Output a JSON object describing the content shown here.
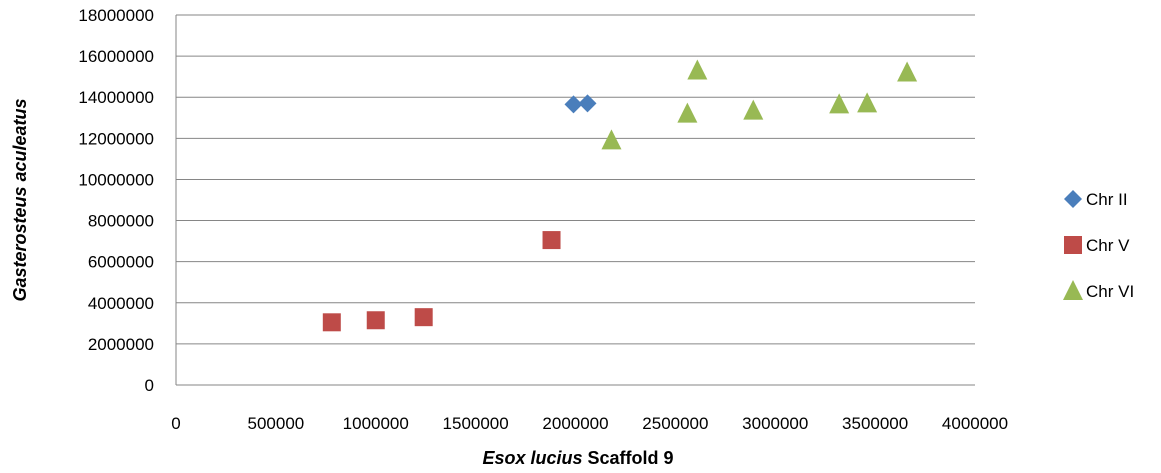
{
  "chart_data": {
    "type": "scatter",
    "title": "",
    "xlabel": {
      "italic": "Esox lucius",
      "plain": " Scaffold 9"
    },
    "ylabel": "Gasterosteus aculeatus",
    "xlim": [
      0,
      4000000
    ],
    "ylim": [
      0,
      18000000
    ],
    "xticks": [
      0,
      500000,
      1000000,
      1500000,
      2000000,
      2500000,
      3000000,
      3500000,
      4000000
    ],
    "yticks": [
      0,
      2000000,
      4000000,
      6000000,
      8000000,
      10000000,
      12000000,
      14000000,
      16000000,
      18000000
    ],
    "grid": "horizontal",
    "legend_position": "right",
    "series": [
      {
        "name": "Chr II",
        "marker": "diamond",
        "color": "#4a7ebb",
        "points": [
          [
            1990000,
            13650000
          ],
          [
            2060000,
            13700000
          ]
        ]
      },
      {
        "name": "Chr V",
        "marker": "square",
        "color": "#be4b48",
        "points": [
          [
            780000,
            3050000
          ],
          [
            1000000,
            3150000
          ],
          [
            1240000,
            3300000
          ],
          [
            1880000,
            7050000
          ]
        ]
      },
      {
        "name": "Chr VI",
        "marker": "triangle",
        "color": "#98b954",
        "points": [
          [
            2180000,
            11900000
          ],
          [
            2560000,
            13200000
          ],
          [
            2610000,
            15300000
          ],
          [
            2890000,
            13350000
          ],
          [
            3320000,
            13650000
          ],
          [
            3460000,
            13700000
          ],
          [
            3660000,
            15200000
          ]
        ]
      }
    ]
  }
}
